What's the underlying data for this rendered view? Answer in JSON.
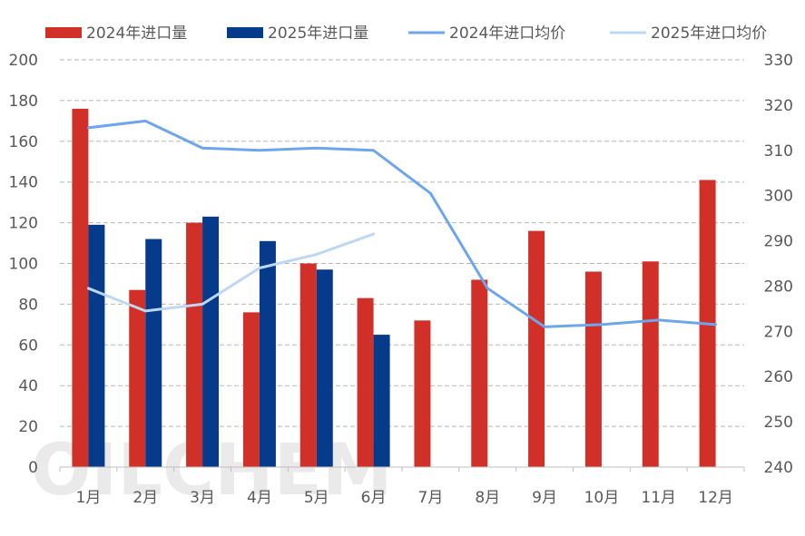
{
  "chart_data": {
    "type": "bar+line",
    "categories": [
      "1月",
      "2月",
      "3月",
      "4月",
      "5月",
      "6月",
      "7月",
      "8月",
      "9月",
      "10月",
      "11月",
      "12月"
    ],
    "bar_series": [
      {
        "name": "2024年进口量",
        "color": "#d03027",
        "values": [
          176,
          87,
          120,
          76,
          100,
          83,
          72,
          92,
          116,
          96,
          101,
          141
        ]
      },
      {
        "name": "2025年进口量",
        "color": "#063a8a",
        "values": [
          119,
          112,
          123,
          111,
          97,
          65,
          null,
          null,
          null,
          null,
          null,
          null
        ]
      }
    ],
    "line_series": [
      {
        "name": "2024年进口均价",
        "color": "#6ea6ec",
        "values": [
          315,
          316.5,
          310.5,
          310,
          310.5,
          310,
          300.5,
          279.5,
          271,
          271.5,
          272.5,
          271.5
        ]
      },
      {
        "name": "2025年进口均价",
        "color": "#bdd7f5",
        "values": [
          279.5,
          274.5,
          276,
          284,
          287,
          291.5,
          null,
          null,
          null,
          null,
          null,
          null
        ]
      }
    ],
    "left_axis": {
      "range": [
        0,
        200
      ],
      "ticks": [
        "0",
        "20",
        "40",
        "60",
        "80",
        "100",
        "120",
        "140",
        "160",
        "180",
        "200"
      ]
    },
    "right_axis": {
      "range": [
        240,
        330
      ],
      "ticks": [
        "240",
        "250",
        "260",
        "270",
        "280",
        "290",
        "300",
        "310",
        "320",
        "330"
      ]
    },
    "grid": true,
    "legend_position": "top",
    "watermark": "OILCHEM"
  }
}
